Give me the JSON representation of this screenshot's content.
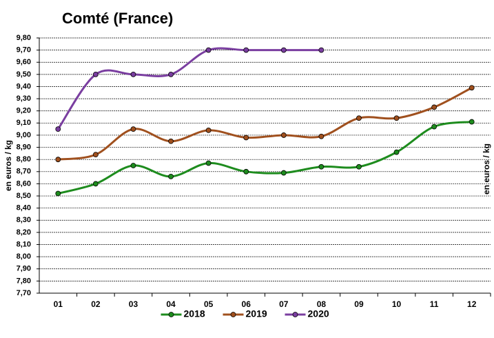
{
  "chart_data": {
    "type": "line",
    "title": "Comté (France)",
    "ylabel": "en euros / kg",
    "ylabel_right": "en euros / kg",
    "categories": [
      "01",
      "02",
      "03",
      "04",
      "05",
      "06",
      "07",
      "08",
      "09",
      "10",
      "11",
      "12"
    ],
    "series": [
      {
        "name": "2018",
        "color": "#1e8c1e",
        "values": [
          8.52,
          8.6,
          8.75,
          8.66,
          8.77,
          8.7,
          8.69,
          8.74,
          8.74,
          8.86,
          9.07,
          9.11
        ]
      },
      {
        "name": "2019",
        "color": "#a0501e",
        "values": [
          8.8,
          8.84,
          9.05,
          8.95,
          9.04,
          8.98,
          9.0,
          8.99,
          9.14,
          9.14,
          9.23,
          9.39
        ]
      },
      {
        "name": "2020",
        "color": "#7a3ea0",
        "values": [
          9.05,
          9.5,
          9.5,
          9.5,
          9.7,
          9.7,
          9.7,
          9.7,
          null,
          null,
          null,
          null
        ]
      }
    ],
    "ylim": [
      7.7,
      9.8
    ],
    "yticks": [
      {
        "value": 7.7,
        "label": "7,70"
      },
      {
        "value": 7.8,
        "label": "7,80"
      },
      {
        "value": 7.9,
        "label": "7,90"
      },
      {
        "value": 8.0,
        "label": "8,00"
      },
      {
        "value": 8.1,
        "label": "8,10"
      },
      {
        "value": 8.2,
        "label": "8,20"
      },
      {
        "value": 8.3,
        "label": "8,30"
      },
      {
        "value": 8.4,
        "label": "8,40"
      },
      {
        "value": 8.5,
        "label": "8,50"
      },
      {
        "value": 8.6,
        "label": "8,60"
      },
      {
        "value": 8.7,
        "label": "8,70"
      },
      {
        "value": 8.8,
        "label": "8,80"
      },
      {
        "value": 8.9,
        "label": "8,90"
      },
      {
        "value": 9.0,
        "label": "9,00"
      },
      {
        "value": 9.1,
        "label": "9,10"
      },
      {
        "value": 9.2,
        "label": "9,20"
      },
      {
        "value": 9.3,
        "label": "9,30"
      },
      {
        "value": 9.4,
        "label": "9,40"
      },
      {
        "value": 9.5,
        "label": "9,50"
      },
      {
        "value": 9.6,
        "label": "9,60"
      },
      {
        "value": 9.7,
        "label": "9,70"
      },
      {
        "value": 9.8,
        "label": "9,80"
      }
    ],
    "grid": true,
    "legend": "bottom"
  }
}
